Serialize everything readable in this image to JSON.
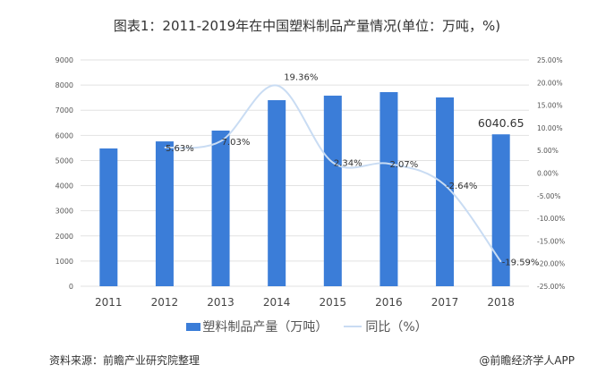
{
  "title": "图表1：2011-2019年在中国塑料制品产量情况(单位：万吨，%)",
  "chart_data": {
    "type": "bar+line",
    "categories": [
      "2011",
      "2012",
      "2013",
      "2014",
      "2015",
      "2016",
      "2017",
      "2018"
    ],
    "series": [
      {
        "name": "塑料制品产量（万吨）",
        "type": "bar",
        "axis": "left",
        "color": "#3b7dd8",
        "values": [
          5480,
          5760,
          6190,
          7400,
          7580,
          7720,
          7510,
          6040.65
        ]
      },
      {
        "name": "同比（%）",
        "type": "line",
        "axis": "right",
        "color": "#c9dcf3",
        "values": [
          null,
          5.63,
          7.03,
          19.36,
          2.34,
          2.07,
          -2.64,
          -19.59
        ],
        "labels": [
          "",
          "5.63%",
          "7.03%",
          "19.36%",
          "2.34%",
          "2.07%",
          "-2.64%",
          "-19.59%"
        ]
      }
    ],
    "bar_data_labels": [
      "",
      "",
      "",
      "",
      "",
      "",
      "",
      "6040.65"
    ],
    "left_axis": {
      "ylim": [
        0,
        9000
      ],
      "ticks": [
        "0",
        "1000",
        "2000",
        "3000",
        "4000",
        "5000",
        "6000",
        "7000",
        "8000",
        "9000"
      ]
    },
    "right_axis": {
      "ylim": [
        -25,
        25
      ],
      "ticks": [
        "-25.00%",
        "-20.00%",
        "-15.00%",
        "-10.00%",
        "-5.00%",
        "0.00%",
        "5.00%",
        "10.00%",
        "15.00%",
        "20.00%",
        "25.00%"
      ]
    },
    "grid": true,
    "legend": "bottom"
  },
  "footer": {
    "source": "资料来源：前瞻产业研究院整理",
    "brand": "@前瞻经济学人APP"
  }
}
